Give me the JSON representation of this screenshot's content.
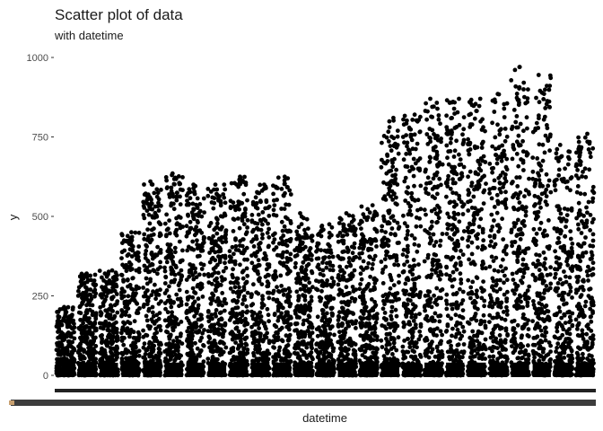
{
  "chart_data": {
    "type": "scatter",
    "title": "Scatter plot of data",
    "subtitle": "with datetime",
    "xlabel": "datetime",
    "ylabel": "y",
    "ylim": [
      0,
      1000
    ],
    "y_ticks": [
      0,
      250,
      500,
      750,
      1000
    ],
    "grid": false,
    "point_color": "#000000",
    "x_axis_band_color": "#3d3d3d",
    "x_tick_label_color": "#4d4d4d",
    "x_tick_accent_color": "#c8a070",
    "groups": [
      {
        "index": 1,
        "max": 215
      },
      {
        "index": 2,
        "max": 320
      },
      {
        "index": 3,
        "max": 330
      },
      {
        "index": 4,
        "max": 450
      },
      {
        "index": 5,
        "max": 610
      },
      {
        "index": 6,
        "max": 635
      },
      {
        "index": 7,
        "max": 600
      },
      {
        "index": 8,
        "max": 600
      },
      {
        "index": 9,
        "max": 625
      },
      {
        "index": 10,
        "max": 600
      },
      {
        "index": 11,
        "max": 625
      },
      {
        "index": 12,
        "max": 510
      },
      {
        "index": 13,
        "max": 475
      },
      {
        "index": 14,
        "max": 510
      },
      {
        "index": 15,
        "max": 535
      },
      {
        "index": 16,
        "max": 810
      },
      {
        "index": 17,
        "max": 820
      },
      {
        "index": 18,
        "max": 870
      },
      {
        "index": 19,
        "max": 870
      },
      {
        "index": 20,
        "max": 870
      },
      {
        "index": 21,
        "max": 885
      },
      {
        "index": 22,
        "max": 970
      },
      {
        "index": 23,
        "max": 945
      },
      {
        "index": 24,
        "max": 725
      },
      {
        "index": 25,
        "max": 760
      }
    ]
  }
}
